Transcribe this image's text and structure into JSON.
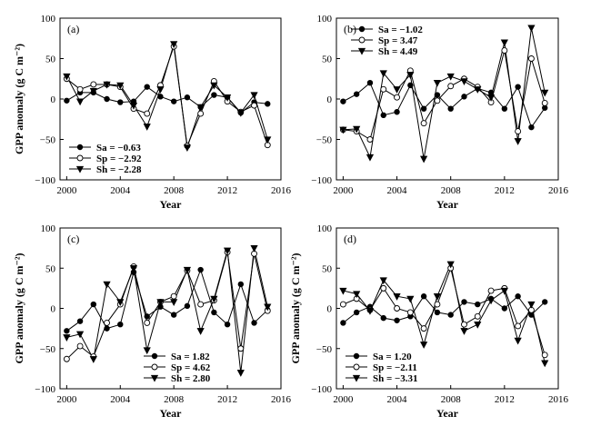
{
  "chart_data": [
    {
      "type": "line",
      "panel_label": "(a)",
      "xlabel": "Year",
      "ylabel": "GPP anomaly (g C m⁻²)",
      "xlim": [
        1999.5,
        2016
      ],
      "ylim": [
        -100,
        100
      ],
      "xticks": [
        "2000",
        "2004",
        "2008",
        "2012",
        "2016"
      ],
      "yticks": [
        "−100",
        "−50",
        "0",
        "50",
        "100"
      ],
      "legend_position": "bottom-left",
      "x": [
        2000,
        2001,
        2002,
        2003,
        2004,
        2005,
        2006,
        2007,
        2008,
        2009,
        2010,
        2011,
        2012,
        2013,
        2014,
        2015
      ],
      "series": [
        {
          "name": "Sa = −0.63",
          "marker": "filled-circle",
          "values": [
            -2,
            8,
            8,
            0,
            -4,
            -3,
            15,
            3,
            -3,
            2,
            -10,
            5,
            2,
            -17,
            -4,
            -6
          ]
        },
        {
          "name": "Sp = −2.92",
          "marker": "open-circle",
          "values": [
            25,
            12,
            18,
            18,
            15,
            -12,
            -18,
            17,
            65,
            -58,
            -18,
            22,
            -3,
            -16,
            -8,
            -57
          ]
        },
        {
          "name": "Sh = −2.28",
          "marker": "filled-triangle-down",
          "values": [
            28,
            -3,
            10,
            18,
            17,
            -8,
            -34,
            12,
            68,
            -60,
            -10,
            17,
            2,
            -17,
            5,
            -50
          ]
        }
      ]
    },
    {
      "type": "line",
      "panel_label": "(b)",
      "xlabel": "Year",
      "ylabel": "",
      "xlim": [
        1999.5,
        2016
      ],
      "ylim": [
        -100,
        100
      ],
      "xticks": [
        "2000",
        "2004",
        "2008",
        "2012",
        "2016"
      ],
      "yticks": [
        "−100",
        "−50",
        "0",
        "50",
        "100"
      ],
      "legend_position": "top-left",
      "x": [
        2000,
        2001,
        2002,
        2003,
        2004,
        2005,
        2006,
        2007,
        2008,
        2009,
        2010,
        2011,
        2012,
        2013,
        2014,
        2015
      ],
      "series": [
        {
          "name": "Sa = −1.02",
          "marker": "filled-circle",
          "values": [
            -3,
            6,
            20,
            -20,
            -16,
            17,
            -12,
            5,
            -12,
            3,
            13,
            8,
            -12,
            15,
            -35,
            -11
          ]
        },
        {
          "name": "Sp = 3.47",
          "marker": "open-circle",
          "values": [
            -38,
            -40,
            -50,
            12,
            2,
            35,
            -30,
            -2,
            16,
            25,
            15,
            -4,
            60,
            -40,
            50,
            -5
          ]
        },
        {
          "name": "Sh = 4.49",
          "marker": "filled-triangle-down",
          "values": [
            -38,
            -37,
            -72,
            32,
            12,
            30,
            -74,
            20,
            28,
            22,
            12,
            2,
            70,
            -52,
            88,
            8
          ]
        }
      ]
    },
    {
      "type": "line",
      "panel_label": "(c)",
      "xlabel": "Year",
      "ylabel": "GPP anomaly (g C m⁻²)",
      "xlim": [
        1999.5,
        2016
      ],
      "ylim": [
        -100,
        100
      ],
      "xticks": [
        "2000",
        "2004",
        "2008",
        "2012",
        "2016"
      ],
      "yticks": [
        "−100",
        "−50",
        "0",
        "50",
        "100"
      ],
      "legend_position": "bottom-center",
      "x": [
        2000,
        2001,
        2002,
        2003,
        2004,
        2005,
        2006,
        2007,
        2008,
        2009,
        2010,
        2011,
        2012,
        2013,
        2014,
        2015
      ],
      "series": [
        {
          "name": "Sa = 1.82",
          "marker": "filled-circle",
          "values": [
            -28,
            -16,
            5,
            -25,
            -20,
            45,
            -10,
            2,
            -8,
            3,
            48,
            -5,
            -20,
            30,
            -18,
            -2
          ]
        },
        {
          "name": "Sp = 4.62",
          "marker": "open-circle",
          "values": [
            -63,
            -47,
            -60,
            -18,
            5,
            52,
            -18,
            8,
            15,
            47,
            5,
            10,
            70,
            -50,
            68,
            -3
          ]
        },
        {
          "name": "Sh = 2.80",
          "marker": "filled-triangle-down",
          "values": [
            -36,
            -32,
            -63,
            30,
            8,
            50,
            -52,
            8,
            8,
            48,
            -28,
            12,
            72,
            -80,
            75,
            2
          ]
        }
      ]
    },
    {
      "type": "line",
      "panel_label": "(d)",
      "xlabel": "Year",
      "ylabel": "GPP anomaly (g C m⁻²)",
      "xlim": [
        1999.5,
        2016
      ],
      "ylim": [
        -100,
        100
      ],
      "xticks": [
        "2000",
        "2004",
        "2008",
        "2012",
        "2016"
      ],
      "yticks": [
        "−100",
        "−50",
        "0",
        "50",
        "100"
      ],
      "legend_position": "bottom-left",
      "x": [
        2000,
        2001,
        2002,
        2003,
        2004,
        2005,
        2006,
        2007,
        2008,
        2009,
        2010,
        2011,
        2012,
        2013,
        2014,
        2015
      ],
      "series": [
        {
          "name": "Sa = 1.20",
          "marker": "filled-circle",
          "values": [
            -18,
            -5,
            2,
            -12,
            -15,
            -10,
            15,
            -5,
            -8,
            8,
            5,
            12,
            0,
            15,
            -8,
            8
          ]
        },
        {
          "name": "Sp = −2.11",
          "marker": "open-circle",
          "values": [
            5,
            12,
            -2,
            25,
            0,
            -5,
            -25,
            5,
            50,
            -20,
            -10,
            22,
            25,
            -22,
            -2,
            -58
          ]
        },
        {
          "name": "Sh = −3.31",
          "marker": "filled-triangle-down",
          "values": [
            22,
            18,
            -3,
            35,
            15,
            12,
            -45,
            15,
            55,
            -28,
            -20,
            10,
            22,
            -40,
            5,
            -68
          ]
        }
      ]
    }
  ]
}
